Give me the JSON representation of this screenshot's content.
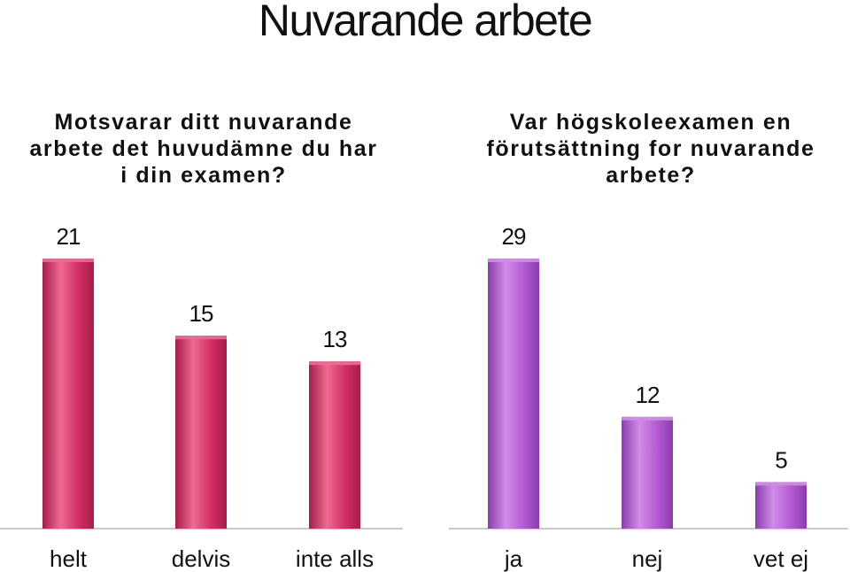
{
  "page": {
    "title": "Nuvarande arbete"
  },
  "chart_data": [
    {
      "type": "bar",
      "title": "Motsvarar ditt nuvarande arbete det huvudämne du har i din examen?",
      "categories": [
        "helt",
        "delvis",
        "inte alls"
      ],
      "values": [
        21,
        15,
        13
      ],
      "ylim": [
        0,
        21
      ],
      "grid": false,
      "legend": "none",
      "color": "#d32f64",
      "color_light": "#ee6a90",
      "color_dark": "#a51e4a"
    },
    {
      "type": "bar",
      "title": "Var högskoleexamen en förutsättning for nuvarande arbete?",
      "categories": [
        "ja",
        "nej",
        "vet ej"
      ],
      "values": [
        29,
        12,
        5
      ],
      "ylim": [
        0,
        29
      ],
      "grid": false,
      "legend": "none",
      "color": "#b35ad2",
      "color_light": "#d08ce8",
      "color_dark": "#8b3cab"
    }
  ]
}
